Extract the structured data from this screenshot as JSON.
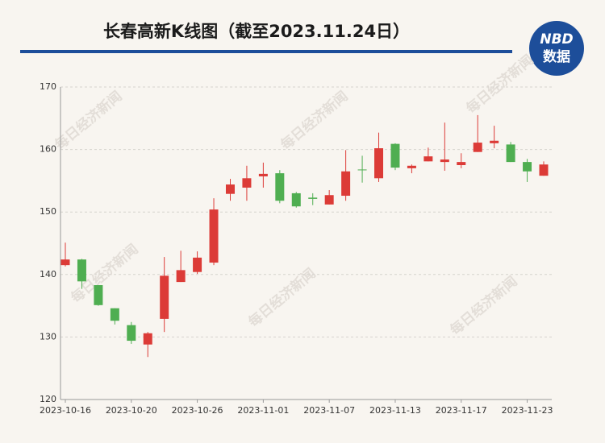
{
  "title": "长春高新K线图（截至2023.11.24日）",
  "logo": {
    "brand": "NBD",
    "caption": "数据"
  },
  "watermark": "每日经济新闻",
  "chart_data": {
    "type": "candlestick",
    "categories": [
      "2023-10-16",
      null,
      null,
      null,
      "2023-10-20",
      null,
      null,
      null,
      "2023-10-26",
      null,
      null,
      null,
      "2023-11-01",
      null,
      null,
      null,
      "2023-11-07",
      null,
      null,
      null,
      "2023-11-13",
      null,
      null,
      null,
      "2023-11-17",
      null,
      null,
      null,
      "2023-11-23",
      null
    ],
    "open": [
      141.5,
      142.4,
      138.3,
      134.6,
      131.9,
      128.8,
      132.9,
      138.8,
      140.4,
      141.9,
      152.9,
      153.9,
      155.7,
      156.2,
      153.0,
      152.3,
      151.2,
      152.6,
      156.8,
      155.4,
      160.9,
      157.0,
      158.1,
      158.0,
      157.5,
      159.6,
      161.0,
      160.8,
      158.0,
      155.8
    ],
    "high": [
      145.1,
      142.5,
      138.3,
      134.6,
      132.4,
      130.8,
      142.8,
      143.8,
      143.7,
      152.2,
      155.3,
      157.4,
      157.9,
      156.7,
      153.2,
      153.0,
      153.5,
      159.9,
      159.0,
      162.7,
      161.0,
      157.6,
      160.3,
      164.3,
      159.4,
      165.5,
      163.8,
      161.2,
      158.5,
      158.1
    ],
    "low": [
      141.3,
      137.7,
      135.0,
      132.0,
      128.9,
      126.8,
      130.8,
      138.8,
      140.1,
      141.5,
      151.8,
      151.8,
      153.9,
      151.4,
      150.7,
      151.1,
      151.2,
      151.8,
      154.7,
      154.8,
      156.7,
      156.2,
      158.1,
      156.6,
      157.0,
      159.6,
      160.2,
      158.0,
      154.8,
      155.8
    ],
    "close": [
      142.4,
      138.9,
      135.1,
      132.6,
      129.4,
      130.6,
      139.8,
      140.7,
      142.7,
      150.4,
      154.4,
      155.4,
      156.1,
      151.8,
      150.9,
      152.1,
      152.7,
      156.5,
      156.7,
      160.2,
      157.1,
      157.4,
      158.9,
      158.4,
      158.0,
      161.1,
      161.4,
      158.0,
      156.5,
      157.6
    ],
    "up_color": "#dc3b37",
    "down_color": "#4fae51",
    "ylim": [
      120,
      170
    ],
    "yticks": [
      120,
      130,
      140,
      150,
      160,
      170
    ],
    "grid": true
  }
}
